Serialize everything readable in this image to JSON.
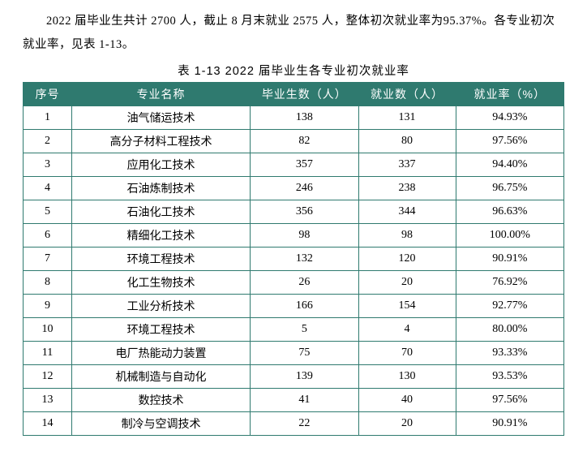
{
  "paragraph": "2022 届毕业生共计 2700 人，截止 8 月末就业 2575 人，整体初次就业率为95.37%。各专业初次就业率，见表 1-13。",
  "table": {
    "caption": "表 1-13 2022 届毕业生各专业初次就业率",
    "header_bg": "#2f7a6f",
    "header_fg": "#ffffff",
    "border_color": "#2f7a6f",
    "columns": [
      "序号",
      "专业名称",
      "毕业生数（人）",
      "就业数（人）",
      "就业率（%）"
    ],
    "rows": [
      [
        "1",
        "油气储运技术",
        "138",
        "131",
        "94.93%"
      ],
      [
        "2",
        "高分子材料工程技术",
        "82",
        "80",
        "97.56%"
      ],
      [
        "3",
        "应用化工技术",
        "357",
        "337",
        "94.40%"
      ],
      [
        "4",
        "石油炼制技术",
        "246",
        "238",
        "96.75%"
      ],
      [
        "5",
        "石油化工技术",
        "356",
        "344",
        "96.63%"
      ],
      [
        "6",
        "精细化工技术",
        "98",
        "98",
        "100.00%"
      ],
      [
        "7",
        "环境工程技术",
        "132",
        "120",
        "90.91%"
      ],
      [
        "8",
        "化工生物技术",
        "26",
        "20",
        "76.92%"
      ],
      [
        "9",
        "工业分析技术",
        "166",
        "154",
        "92.77%"
      ],
      [
        "10",
        "环境工程技术",
        "5",
        "4",
        "80.00%"
      ],
      [
        "11",
        "电厂热能动力装置",
        "75",
        "70",
        "93.33%"
      ],
      [
        "12",
        "机械制造与自动化",
        "139",
        "130",
        "93.53%"
      ],
      [
        "13",
        "数控技术",
        "41",
        "40",
        "97.56%"
      ],
      [
        "14",
        "制冷与空调技术",
        "22",
        "20",
        "90.91%"
      ]
    ]
  }
}
